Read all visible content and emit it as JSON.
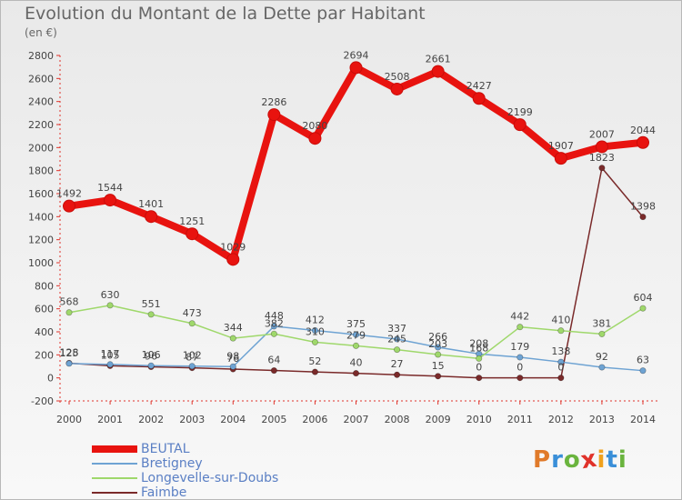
{
  "header": {
    "title": "Evolution du Montant de la Dette par Habitant",
    "unit": "(en €)"
  },
  "logo": {
    "text": "Proxiti",
    "colors": [
      "#e07a2a",
      "#3a8fd8",
      "#6ab43e",
      "#e0322a",
      "#f0a21e",
      "#3a8fd8",
      "#6ab43e"
    ]
  },
  "chart_data": {
    "type": "line",
    "title": "Evolution du Montant de la Dette par Habitant",
    "ylabel": "(en €)",
    "xlabel": "",
    "ylim": [
      -200,
      2800
    ],
    "yticks": [
      -200,
      0,
      200,
      400,
      600,
      800,
      1000,
      1200,
      1400,
      1600,
      1800,
      2000,
      2200,
      2400,
      2600,
      2800
    ],
    "x": [
      "2000",
      "2001",
      "2002",
      "2003",
      "2004",
      "2005",
      "2006",
      "2007",
      "2008",
      "2009",
      "2010",
      "2011",
      "2012",
      "2013",
      "2014"
    ],
    "legend_position": "bottom-left",
    "grid": false,
    "series": [
      {
        "name": "BEUTAL",
        "color": "#e8130f",
        "values": [
          1492,
          1544,
          1401,
          1251,
          1029,
          2286,
          2080,
          2694,
          2508,
          2661,
          2427,
          2199,
          1907,
          2007,
          2044
        ],
        "labels": [
          "1492",
          "1544",
          "1401",
          "1251",
          "1029",
          "2286",
          "2080",
          "2694",
          "2508",
          "2661",
          "2427",
          "2199",
          "1907",
          "2007",
          "2044"
        ]
      },
      {
        "name": "Bretigney",
        "color": "#6ea3d3",
        "values": [
          125,
          117,
          106,
          102,
          98,
          448,
          412,
          375,
          337,
          266,
          208,
          179,
          138,
          92,
          63
        ],
        "labels": [
          "125",
          "117",
          "106",
          "102",
          "98",
          "448",
          "412",
          "375",
          "337",
          "266",
          "208",
          "179",
          "138",
          "92",
          "63"
        ]
      },
      {
        "name": "Longevelle-sur-Doubs",
        "color": "#9fd86b",
        "values": [
          568,
          630,
          551,
          473,
          344,
          382,
          310,
          279,
          245,
          203,
          168,
          442,
          410,
          381,
          604
        ],
        "labels": [
          "568",
          "630",
          "551",
          "473",
          "344",
          "382",
          "310",
          "279",
          "245",
          "203",
          "168",
          "442",
          "410",
          "381",
          "604"
        ]
      },
      {
        "name": "Faimbe",
        "color": "#7a2a2a",
        "values": [
          128,
          105,
          96,
          87,
          76,
          64,
          52,
          40,
          27,
          15,
          0,
          0,
          0,
          1823,
          1398
        ],
        "labels": [
          "128",
          "105",
          "96",
          "87",
          "76",
          "64",
          "52",
          "40",
          "27",
          "15",
          "0",
          "0",
          "0",
          "1823",
          "1398"
        ]
      }
    ]
  }
}
